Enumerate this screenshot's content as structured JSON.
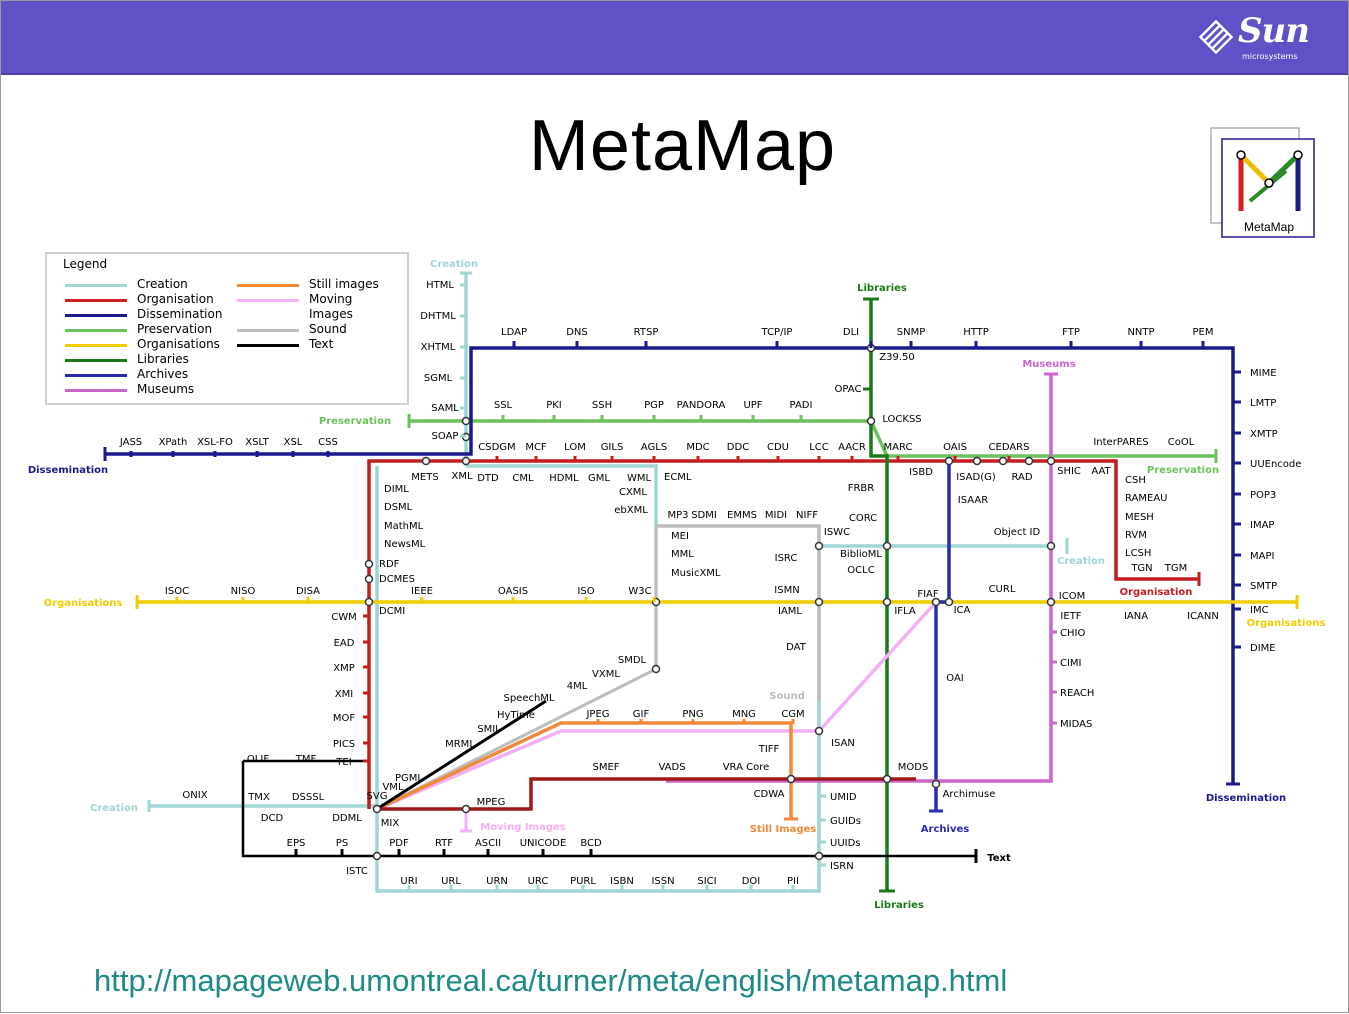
{
  "brand": {
    "company": "Sun",
    "company_sub": "microsystems",
    "header_color": "#5f51c6"
  },
  "slide": {
    "title": "MetaMap",
    "logo_caption": "MetaMap",
    "url": "http://mapageweb.umontreal.ca/turner/meta/english/metamap.html"
  },
  "legend": {
    "title": "Legend",
    "items": [
      {
        "label": "Creation",
        "color": "#9fd5d5"
      },
      {
        "label": "Organisation",
        "color": "#cc2020"
      },
      {
        "label": "Dissemination",
        "color": "#1a1a8c"
      },
      {
        "label": "Preservation",
        "color": "#6cc25a"
      },
      {
        "label": "Organisations",
        "color": "#f0cc00"
      },
      {
        "label": "Libraries",
        "color": "#1a7a1a"
      },
      {
        "label": "Archives",
        "color": "#2a2ab4"
      },
      {
        "label": "Museums",
        "color": "#cc66cc"
      },
      {
        "label": "Still images",
        "color": "#f08a3a"
      },
      {
        "label": "Moving",
        "color": "#f4b0f4"
      },
      {
        "label": "Images",
        "color": ""
      },
      {
        "label": "Sound",
        "color": "#bdbdbd"
      },
      {
        "label": "Text",
        "color": "#000000"
      }
    ]
  },
  "lines": {
    "creation": "Creation",
    "libraries": "Libraries",
    "preservation": "Preservation",
    "dissemination": "Dissemination",
    "organisations": "Organisations",
    "museums": "Museums",
    "organisation": "Organisation",
    "sound": "Sound",
    "moving_images": "Moving Images",
    "still_images": "Still Images",
    "archives": "Archives",
    "text": "Text"
  },
  "stations": {
    "creation_v": [
      "HTML",
      "DHTML",
      "XHTML",
      "SGML",
      "SAML",
      "SOAP"
    ],
    "dissem_left": [
      "JASS",
      "XPath",
      "XSL-FO",
      "XSLT",
      "XSL",
      "CSS"
    ],
    "top_dissem": [
      "LDAP",
      "DNS",
      "RTSP",
      "TCP/IP",
      "DLI",
      "SNMP",
      "HTTP",
      "FTP",
      "NNTP",
      "PEM"
    ],
    "z3950": "Z39.50",
    "opac": "OPAC",
    "lockss": "LOCKSS",
    "preservation": [
      "SSL",
      "PKI",
      "SSH",
      "PGP",
      "PANDORA",
      "UPF",
      "PADI"
    ],
    "org_red": [
      "CSDGM",
      "MCF",
      "LOM",
      "GILS",
      "AGLS",
      "MDC",
      "DDC",
      "CDU",
      "LCC",
      "AACR",
      "MARC",
      "OAIS",
      "CEDARS"
    ],
    "right_preservation": [
      "InterPARES",
      "CoOL"
    ],
    "right_dissem": [
      "MIME",
      "LMTP",
      "XMTP",
      "UUEncode",
      "POP3",
      "IMAP",
      "MAPI",
      "SMTP",
      "IMC",
      "DIME"
    ],
    "mets": "METS",
    "xml": "XML",
    "sub_xml": [
      "DTD",
      "CML",
      "HDML",
      "GML",
      "WML"
    ],
    "ecml": "ECML",
    "cxml": "CXML",
    "ebxml": "ebXML",
    "left_col": [
      "DIML",
      "DSML",
      "MathML",
      "NewsML",
      "RDF",
      "DCMES",
      "DCMI"
    ],
    "org_yellow": [
      "ISOC",
      "NISO",
      "DISA",
      "IEEE",
      "OASIS",
      "ISO",
      "W3C"
    ],
    "sound_top": [
      "MP3",
      "SDMI",
      "EMMS",
      "MIDI",
      "NIFF"
    ],
    "sound_sub": [
      "MEI",
      "MML",
      "MusicXML"
    ],
    "isrc": "ISRC",
    "iswc": "ISWC",
    "biblio": [
      "BiblioML",
      "OCLC"
    ],
    "frbr": "FRBR",
    "corc": "CORC",
    "ismn": "ISMN",
    "iaml": "IAML",
    "ifla": "IFLA",
    "fiaf": "FIAF",
    "ica": "ICA",
    "curl": "CURL",
    "icom": "ICOM",
    "ietf": "IETF",
    "iana": "IANA",
    "icann": "ICANN",
    "isbd": "ISBD",
    "isad": "ISAD(G)",
    "rad": "RAD",
    "isaar": "ISAAR",
    "object_id": "Object ID",
    "shic": "SHIC",
    "aat": "AAT",
    "museum_subs": [
      "CSH",
      "RAMEAU",
      "MESH",
      "RVM",
      "LCSH",
      "TGN",
      "TGM"
    ],
    "museum_orgs": [
      "CHIO",
      "CIMI",
      "REACH",
      "MIDAS"
    ],
    "red_left": [
      "CWM",
      "EAD",
      "XMP",
      "XMI",
      "MOF",
      "PICS",
      "TEI"
    ],
    "dat": "DAT",
    "smdl": "SMDL",
    "vxml": "VXML",
    "fourml": "4ML",
    "speechml": "SpeechML",
    "hytime": "HyTime",
    "smil": "SMIL",
    "mrml": "MRML",
    "pgml": "PGML",
    "vml": "VML",
    "svg": "SVG",
    "images": [
      "JPEG",
      "GIF",
      "PNG",
      "MNG",
      "CGM"
    ],
    "isan": "ISAN",
    "tiff": "TIFF",
    "oai": "OAI",
    "smef": "SMEF",
    "vads": "VADS",
    "vra": "VRA Core",
    "mods": "MODS",
    "cdwa": "CDWA",
    "archimuse": "Archimuse",
    "mpeg": "MPEG",
    "mix": "MIX",
    "text_left": [
      "OLIF",
      "TMF",
      "ONIX",
      "TMX",
      "DSSSL",
      "DCD",
      "DDML"
    ],
    "text_row": [
      "EPS",
      "PS",
      "PDF",
      "RTF",
      "ASCII",
      "UNICODE",
      "BCD"
    ],
    "istc": "ISTC",
    "right_box": [
      "UMID",
      "GUIDs",
      "UUIDs",
      "ISRN"
    ],
    "bottom_row": [
      "URI",
      "URL",
      "URN",
      "URC",
      "PURL",
      "ISBN",
      "ISSN",
      "SICI",
      "DOI",
      "PII"
    ]
  }
}
